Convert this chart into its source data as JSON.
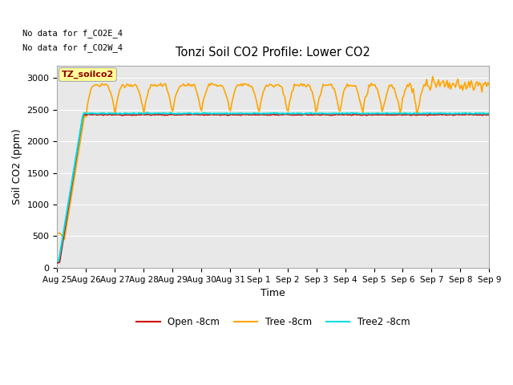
{
  "title": "Tonzi Soil CO2 Profile: Lower CO2",
  "xlabel": "Time",
  "ylabel": "Soil CO2 (ppm)",
  "no_data_text_1": "No data for f_CO2E_4",
  "no_data_text_2": "No data for f_CO2W_4",
  "legend_label_box": "TZ_soilco2",
  "legend_entries": [
    "Open -8cm",
    "Tree -8cm",
    "Tree2 -8cm"
  ],
  "open_color": "#cc0000",
  "tree_color": "#ffa500",
  "tree2_color": "#00dddd",
  "fig_bg": "#ffffff",
  "plot_bg": "#e8e8e8",
  "ylim": [
    0,
    3200
  ],
  "yticks": [
    0,
    500,
    1000,
    1500,
    2000,
    2500,
    3000
  ],
  "n_days": 15,
  "tick_labels": [
    "Aug 25",
    "Aug 26",
    "Aug 27",
    "Aug 28",
    "Aug 29",
    "Aug 30",
    "Aug 31",
    "Sep 1",
    "Sep 2",
    "Sep 3",
    "Sep 4",
    "Sep 5",
    "Sep 6",
    "Sep 7",
    "Sep 8",
    "Sep 9"
  ]
}
